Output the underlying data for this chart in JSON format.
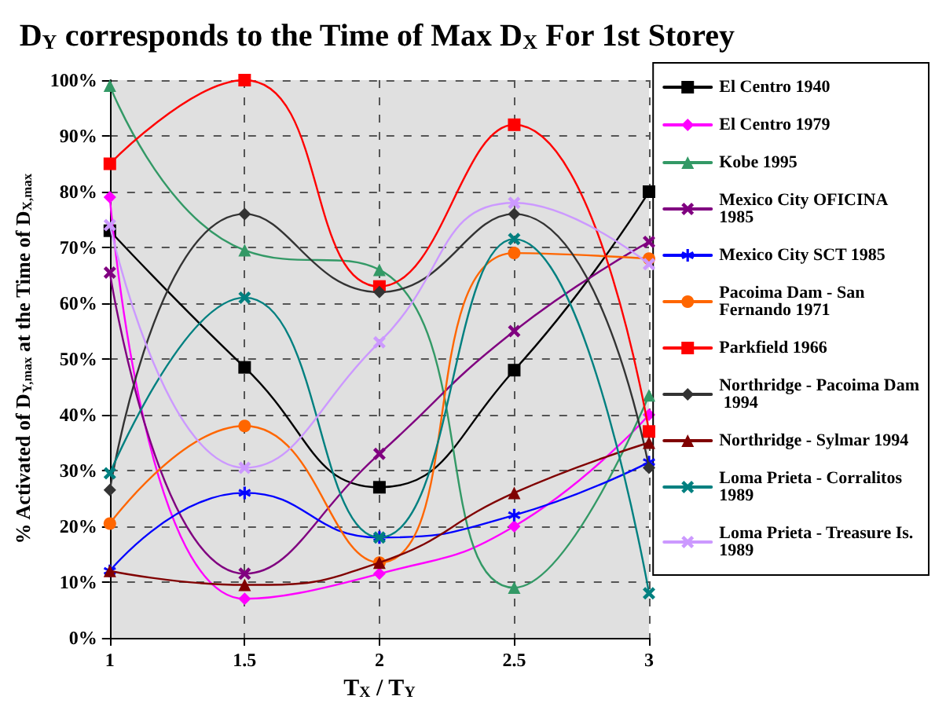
{
  "chart_data": {
    "type": "line",
    "title": "D$_{Y}$ corresponds to the Time of Max D$_{X}$ For 1st Storey",
    "xlabel": "T$_{X}$ / T$_{Y}$",
    "ylabel": "% Activated of D$_{Y,max}$ at the Time of D$_{X,max}$",
    "x": [
      1,
      1.5,
      2,
      2.5,
      3
    ],
    "xlim": [
      1,
      3
    ],
    "xticks": [
      1,
      1.5,
      2,
      2.5,
      3
    ],
    "ylim": [
      0,
      100
    ],
    "yticks": [
      {
        "value": 0,
        "label": "0%"
      },
      {
        "value": 10,
        "label": "10%"
      },
      {
        "value": 20,
        "label": "20%"
      },
      {
        "value": 30,
        "label": "30%"
      },
      {
        "value": 40,
        "label": "40%"
      },
      {
        "value": 50,
        "label": "50%"
      },
      {
        "value": 60,
        "label": "60%"
      },
      {
        "value": 70,
        "label": "70%"
      },
      {
        "value": 80,
        "label": "80%"
      },
      {
        "value": 90,
        "label": "90%"
      },
      {
        "value": 100,
        "label": "100%"
      }
    ],
    "grid": true,
    "legend": "right",
    "line_style": "solid",
    "series": [
      {
        "name": "El Centro 1940",
        "color": "#000000",
        "marker": "square",
        "values": [
          73,
          48.5,
          27,
          48,
          80
        ]
      },
      {
        "name": "El Centro 1979",
        "color": "#ff00ff",
        "marker": "diamond",
        "values": [
          79,
          7,
          11.5,
          20,
          40
        ]
      },
      {
        "name": "Kobe 1995",
        "color": "#339966",
        "marker": "triangle",
        "values": [
          99,
          69.5,
          66,
          9,
          43.5
        ]
      },
      {
        "name": "Mexico City OFICINA 1985",
        "color": "#800080",
        "marker": "cross",
        "values": [
          65.5,
          11.5,
          33,
          55,
          71
        ]
      },
      {
        "name": "Mexico City SCT 1985",
        "color": "#0000ff",
        "marker": "star",
        "values": [
          12,
          26,
          18,
          22,
          31.5
        ]
      },
      {
        "name": "Pacoima Dam - San Fernando 1971",
        "color": "#ff6600",
        "marker": "circle",
        "values": [
          20.5,
          38,
          13.5,
          69,
          68
        ]
      },
      {
        "name": "Parkfield 1966",
        "color": "#ff0000",
        "marker": "square",
        "values": [
          85,
          100,
          63,
          92,
          37
        ]
      },
      {
        "name": "Northridge - Pacoima Dam 1994",
        "color": "#333333",
        "marker": "diamond",
        "values": [
          26.5,
          76,
          62,
          76,
          30.5
        ]
      },
      {
        "name": "Northridge - Sylmar 1994",
        "color": "#800000",
        "marker": "triangle",
        "values": [
          12,
          9.5,
          13.5,
          26,
          35
        ]
      },
      {
        "name": "Loma Prieta - Corralitos 1989",
        "color": "#008080",
        "marker": "cross",
        "values": [
          29.5,
          61,
          18,
          71.5,
          8
        ]
      },
      {
        "name": "Loma Prieta - Treasure Is. 1989",
        "color": "#cc99ff",
        "marker": "cross",
        "values": [
          74,
          30.5,
          53,
          78,
          67
        ]
      }
    ]
  }
}
